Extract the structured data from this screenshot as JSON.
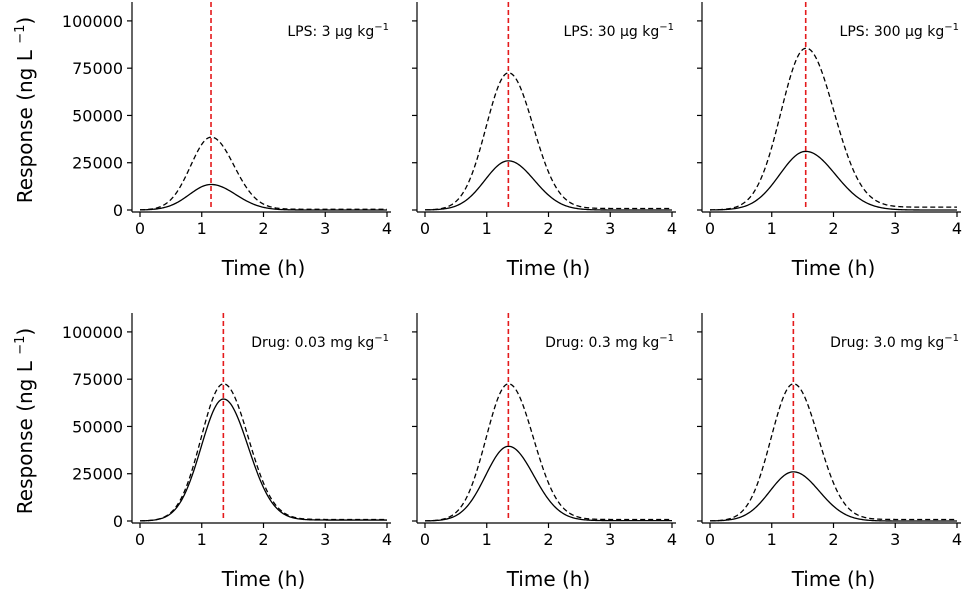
{
  "chart_data": [
    {
      "type": "line",
      "title": "LPS: 3 μg kg",
      "title_sup": "−1",
      "xlabel": "Time (h)",
      "ylabel": "Response (ng L",
      "ylabel_sup": "−1",
      "ylabel_close": ")",
      "show_ylabel": true,
      "show_yticklabels": true,
      "xlim": [
        0,
        4
      ],
      "ylim": [
        0,
        110000
      ],
      "xticks": [
        "0",
        "1",
        "2",
        "3",
        "4"
      ],
      "yticks": [
        "0",
        "25000",
        "50000",
        "75000",
        "100000"
      ],
      "vline_x": 1.15,
      "series": [
        {
          "style": "solid",
          "amp": 13500,
          "peak": 1.15,
          "sl": 0.35,
          "sr": 0.4,
          "base": 0
        },
        {
          "style": "dashed",
          "amp": 38500,
          "peak": 1.15,
          "sl": 0.33,
          "sr": 0.37,
          "base": 400
        }
      ]
    },
    {
      "type": "line",
      "title": "LPS: 30 μg kg",
      "title_sup": "−1",
      "xlabel": "Time (h)",
      "ylabel": "",
      "show_ylabel": false,
      "show_yticklabels": false,
      "xlim": [
        0,
        4
      ],
      "ylim": [
        0,
        110000
      ],
      "xticks": [
        "0",
        "1",
        "2",
        "3",
        "4"
      ],
      "yticks": [
        "0",
        "25000",
        "50000",
        "75000",
        "100000"
      ],
      "vline_x": 1.35,
      "series": [
        {
          "style": "solid",
          "amp": 26000,
          "peak": 1.35,
          "sl": 0.38,
          "sr": 0.42,
          "base": 0
        },
        {
          "style": "dashed",
          "amp": 72500,
          "peak": 1.35,
          "sl": 0.36,
          "sr": 0.4,
          "base": 800
        }
      ]
    },
    {
      "type": "line",
      "title": "LPS: 300 μg kg",
      "title_sup": "−1",
      "xlabel": "Time (h)",
      "ylabel": "",
      "show_ylabel": false,
      "show_yticklabels": false,
      "xlim": [
        0,
        4
      ],
      "ylim": [
        0,
        110000
      ],
      "xticks": [
        "0",
        "1",
        "2",
        "3",
        "4"
      ],
      "yticks": [
        "0",
        "25000",
        "50000",
        "75000",
        "100000"
      ],
      "vline_x": 1.55,
      "series": [
        {
          "style": "solid",
          "amp": 31000,
          "peak": 1.55,
          "sl": 0.42,
          "sr": 0.48,
          "base": 0
        },
        {
          "style": "dashed",
          "amp": 85500,
          "peak": 1.55,
          "sl": 0.4,
          "sr": 0.45,
          "base": 1500
        }
      ]
    },
    {
      "type": "line",
      "title": "Drug: 0.03 mg kg",
      "title_sup": "−1",
      "xlabel": "Time (h)",
      "ylabel": "Response (ng L",
      "ylabel_sup": "−1",
      "ylabel_close": ")",
      "show_ylabel": true,
      "show_yticklabels": true,
      "xlim": [
        0,
        4
      ],
      "ylim": [
        0,
        110000
      ],
      "xticks": [
        "0",
        "1",
        "2",
        "3",
        "4"
      ],
      "yticks": [
        "0",
        "25000",
        "50000",
        "75000",
        "100000"
      ],
      "vline_x": 1.35,
      "series": [
        {
          "style": "solid",
          "amp": 64500,
          "peak": 1.35,
          "sl": 0.36,
          "sr": 0.4,
          "base": 500
        },
        {
          "style": "dashed",
          "amp": 72500,
          "peak": 1.35,
          "sl": 0.36,
          "sr": 0.4,
          "base": 800
        }
      ]
    },
    {
      "type": "line",
      "title": "Drug: 0.3 mg kg",
      "title_sup": "−1",
      "xlabel": "Time (h)",
      "ylabel": "",
      "show_ylabel": false,
      "show_yticklabels": false,
      "xlim": [
        0,
        4
      ],
      "ylim": [
        0,
        110000
      ],
      "xticks": [
        "0",
        "1",
        "2",
        "3",
        "4"
      ],
      "yticks": [
        "0",
        "25000",
        "50000",
        "75000",
        "100000"
      ],
      "vline_x": 1.35,
      "series": [
        {
          "style": "solid",
          "amp": 39500,
          "peak": 1.35,
          "sl": 0.37,
          "sr": 0.41,
          "base": 200
        },
        {
          "style": "dashed",
          "amp": 72500,
          "peak": 1.35,
          "sl": 0.36,
          "sr": 0.4,
          "base": 800
        }
      ]
    },
    {
      "type": "line",
      "title": "Drug: 3.0 mg kg",
      "title_sup": "−1",
      "xlabel": "Time (h)",
      "ylabel": "",
      "show_ylabel": false,
      "show_yticklabels": false,
      "xlim": [
        0,
        4
      ],
      "ylim": [
        0,
        110000
      ],
      "xticks": [
        "0",
        "1",
        "2",
        "3",
        "4"
      ],
      "yticks": [
        "0",
        "25000",
        "50000",
        "75000",
        "100000"
      ],
      "vline_x": 1.35,
      "series": [
        {
          "style": "solid",
          "amp": 26000,
          "peak": 1.35,
          "sl": 0.38,
          "sr": 0.42,
          "base": 0
        },
        {
          "style": "dashed",
          "amp": 72500,
          "peak": 1.35,
          "sl": 0.36,
          "sr": 0.4,
          "base": 800
        }
      ]
    }
  ]
}
